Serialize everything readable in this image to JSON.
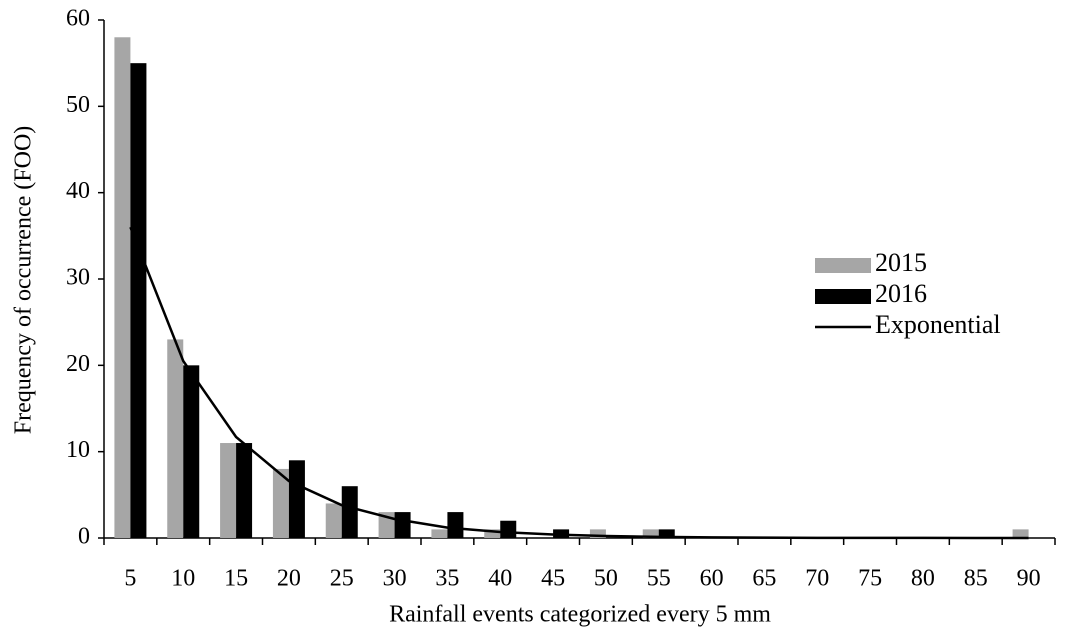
{
  "chart_data": {
    "type": "bar",
    "x_label": "Rainfall events categorized every 5 mm",
    "y_label": "Frequency of occurrence (FOO)",
    "categories": [
      "5",
      "10",
      "15",
      "20",
      "25",
      "30",
      "35",
      "40",
      "45",
      "50",
      "55",
      "60",
      "65",
      "70",
      "75",
      "80",
      "85",
      "90"
    ],
    "series": [
      {
        "name": "2015",
        "color": "#a6a6a6",
        "values": [
          58,
          23,
          11,
          8,
          4,
          3,
          1,
          1,
          0,
          1,
          1,
          0,
          0,
          0,
          0,
          0,
          0,
          1
        ]
      },
      {
        "name": "2016",
        "color": "#000000",
        "values": [
          55,
          20,
          11,
          9,
          6,
          3,
          3,
          2,
          1,
          0,
          1,
          0,
          0,
          0,
          0,
          0,
          0,
          0
        ]
      },
      {
        "name": "Exponential",
        "type": "line",
        "color": "#000000",
        "values": [
          36,
          20.5,
          11.7,
          6.6,
          3.8,
          2.2,
          1.2,
          0.7,
          0.4,
          0.23,
          0.13,
          0.07,
          0.04,
          0.02,
          0.01,
          0.01,
          0,
          0
        ]
      }
    ],
    "ylim": [
      0,
      60
    ],
    "yticks": [
      0,
      10,
      20,
      30,
      40,
      50,
      60
    ],
    "legend": "right",
    "grid": false
  }
}
